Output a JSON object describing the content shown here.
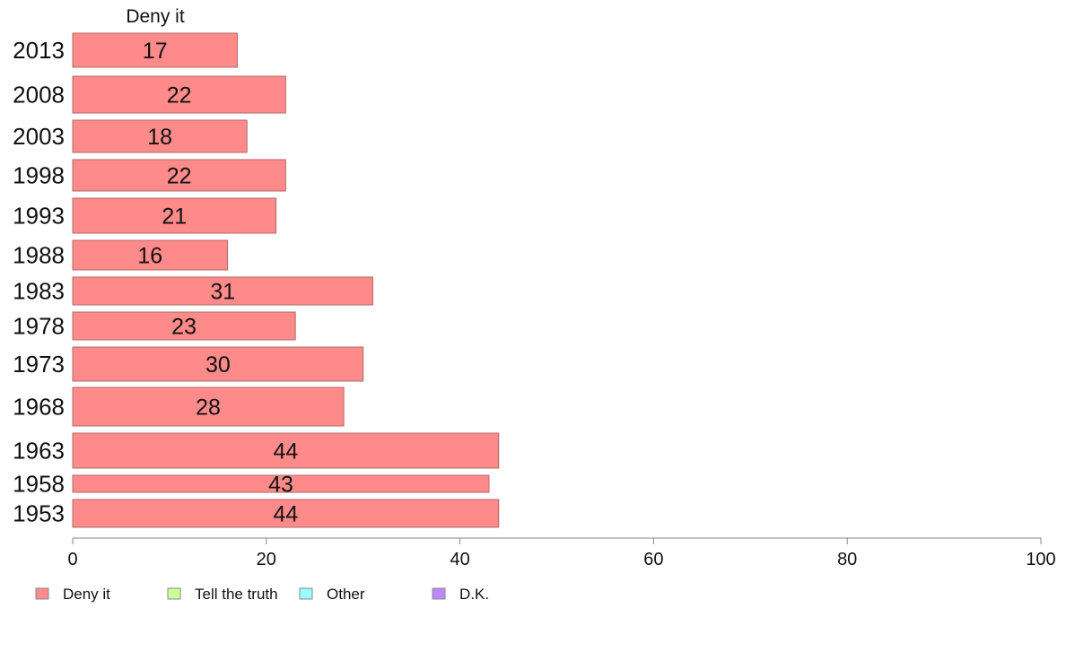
{
  "chart_data": {
    "type": "bar",
    "orientation": "horizontal",
    "title": "Deny it",
    "categories": [
      "2013",
      "2008",
      "2003",
      "1998",
      "1993",
      "1988",
      "1983",
      "1978",
      "1973",
      "1968",
      "1963",
      "1958",
      "1953"
    ],
    "series": [
      {
        "name": "Deny it",
        "color": "#ff8a8a",
        "values": [
          17,
          22,
          18,
          22,
          21,
          16,
          31,
          23,
          30,
          28,
          44,
          43,
          44
        ],
        "labels": [
          "17",
          "22",
          "18",
          "22",
          "21",
          "16",
          "31",
          "23",
          "30",
          "28",
          "44",
          "43",
          "44"
        ]
      }
    ],
    "xlim": [
      0,
      100
    ],
    "xticks": [
      0,
      20,
      40,
      60,
      80,
      100
    ],
    "xticklabels": [
      "0",
      "20",
      "40",
      "60",
      "80",
      "100"
    ],
    "grid": false,
    "legend": {
      "position": "bottom-left",
      "items": [
        {
          "label": "Deny it",
          "color": "#ff8a8a"
        },
        {
          "label": "Tell the truth",
          "color": "#ccff99"
        },
        {
          "label": "Other",
          "color": "#99ffff"
        },
        {
          "label": "D.K.",
          "color": "#bb88ff"
        }
      ]
    }
  }
}
